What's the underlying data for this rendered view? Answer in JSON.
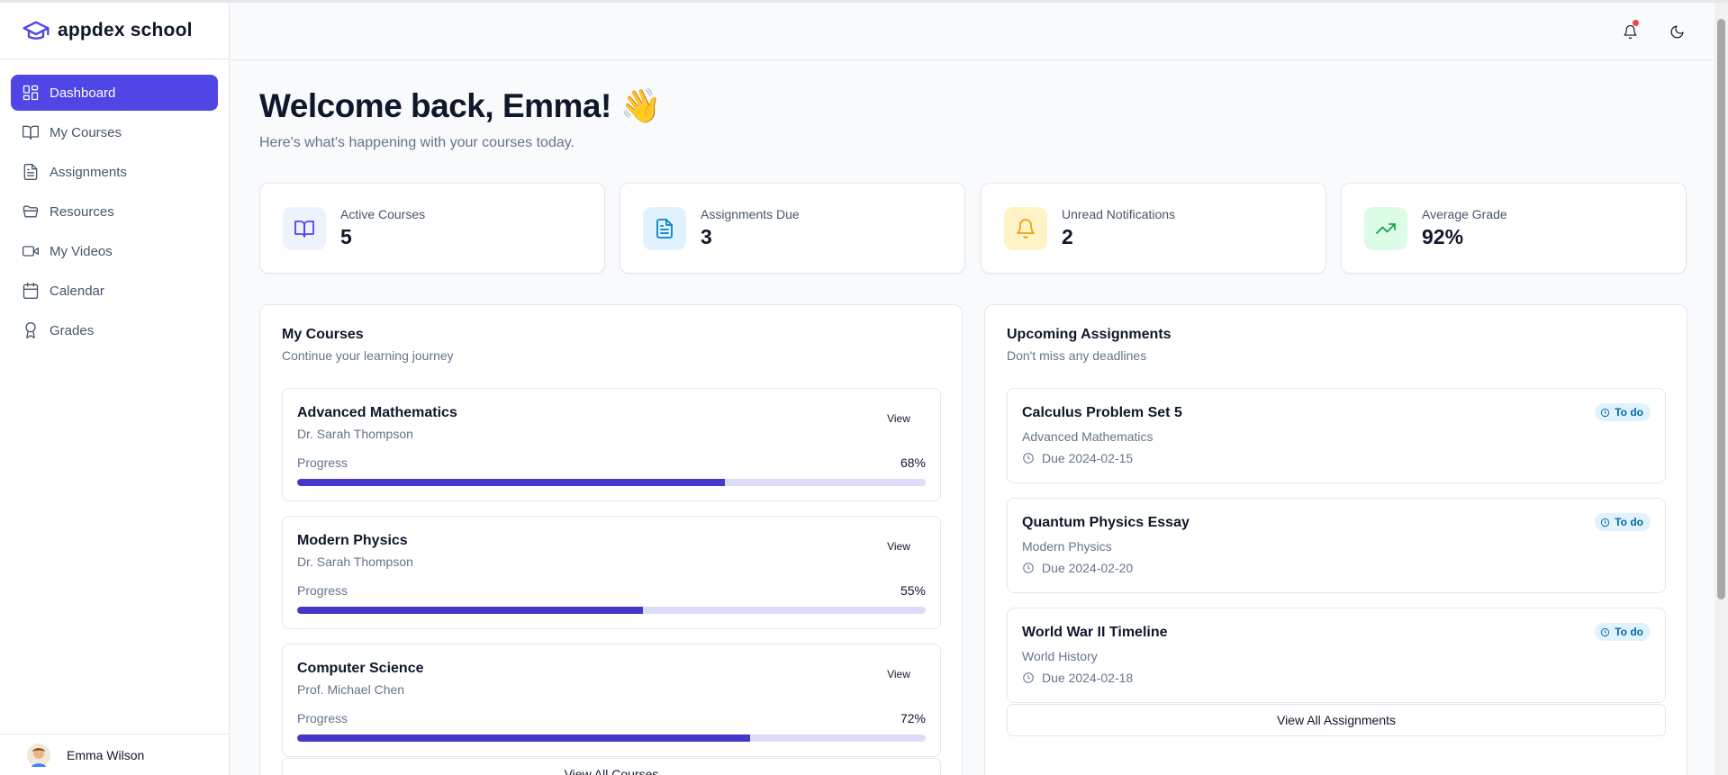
{
  "app": {
    "name": "appdex school"
  },
  "sidebar": {
    "items": [
      {
        "label": "Dashboard",
        "icon": "dashboard-icon",
        "active": true
      },
      {
        "label": "My Courses",
        "icon": "book-icon",
        "active": false
      },
      {
        "label": "Assignments",
        "icon": "file-text-icon",
        "active": false
      },
      {
        "label": "Resources",
        "icon": "folder-icon",
        "active": false
      },
      {
        "label": "My Videos",
        "icon": "video-icon",
        "active": false
      },
      {
        "label": "Calendar",
        "icon": "calendar-icon",
        "active": false
      },
      {
        "label": "Grades",
        "icon": "award-icon",
        "active": false
      }
    ],
    "user": {
      "name": "Emma Wilson"
    }
  },
  "header": {
    "icons": [
      "bell-icon",
      "moon-icon"
    ]
  },
  "welcome": {
    "title": "Welcome back, Emma! 👋",
    "subtitle": "Here's what's happening with your courses today."
  },
  "stats": [
    {
      "label": "Active Courses",
      "value": "5",
      "icon": "book-icon",
      "color": "#4f46e5"
    },
    {
      "label": "Assignments Due",
      "value": "3",
      "icon": "file-text-icon",
      "color": "#0284c7"
    },
    {
      "label": "Unread Notifications",
      "value": "2",
      "icon": "bell-icon",
      "color": "#f59e0b"
    },
    {
      "label": "Average Grade",
      "value": "92%",
      "icon": "trending-up-icon",
      "color": "#16a34a"
    }
  ],
  "courses_panel": {
    "title": "My Courses",
    "subtitle": "Continue your learning journey",
    "progress_label": "Progress",
    "view_label": "View",
    "view_all_label": "View All Courses",
    "courses": [
      {
        "name": "Advanced Mathematics",
        "teacher": "Dr. Sarah Thompson",
        "progress": "68%",
        "progress_value": 0.68
      },
      {
        "name": "Modern Physics",
        "teacher": "Dr. Sarah Thompson",
        "progress": "55%",
        "progress_value": 0.55
      },
      {
        "name": "Computer Science",
        "teacher": "Prof. Michael Chen",
        "progress": "72%",
        "progress_value": 0.72
      }
    ]
  },
  "assignments_panel": {
    "title": "Upcoming Assignments",
    "subtitle": "Don't miss any deadlines",
    "view_all_label": "View All Assignments",
    "assignments": [
      {
        "title": "Calculus Problem Set 5",
        "course": "Advanced Mathematics",
        "due": "Due 2024-02-15",
        "status": "To do"
      },
      {
        "title": "Quantum Physics Essay",
        "course": "Modern Physics",
        "due": "Due 2024-02-20",
        "status": "To do"
      },
      {
        "title": "World War II Timeline",
        "course": "World History",
        "due": "Due 2024-02-18",
        "status": "To do"
      }
    ]
  },
  "colors": {
    "accent": "#4f46e5",
    "progress_fill": "#4338ca",
    "progress_track": "#dcdcf7",
    "badge_bg": "#e0f2fe",
    "badge_text": "#0369a1",
    "notification_dot": "#ef4444"
  }
}
